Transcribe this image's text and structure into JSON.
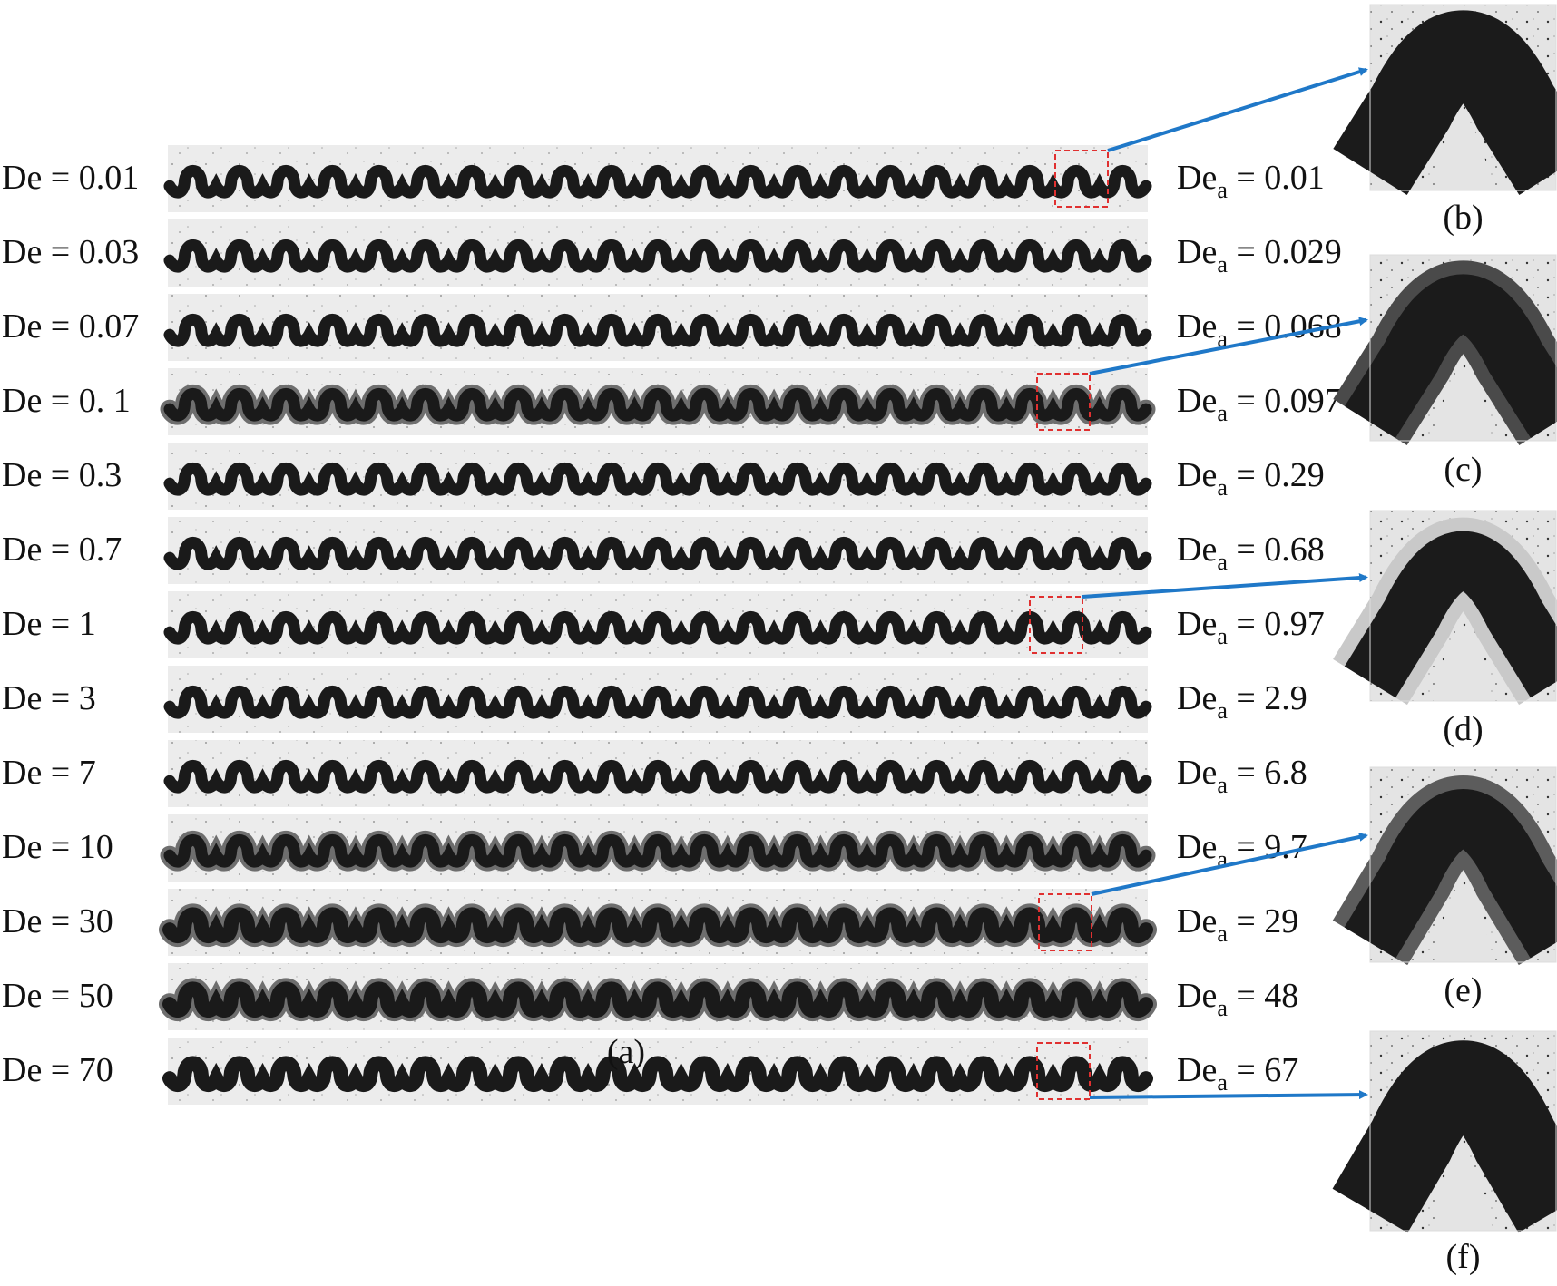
{
  "figure": {
    "rows": [
      {
        "de_label": "De = 0.01",
        "dea_value": "0.01"
      },
      {
        "de_label": "De = 0.03",
        "dea_value": "0.029"
      },
      {
        "de_label": "De = 0.07",
        "dea_value": "0.068"
      },
      {
        "de_label": "De = 0. 1",
        "dea_value": "0.097"
      },
      {
        "de_label": "De = 0.3",
        "dea_value": "0.29"
      },
      {
        "de_label": "De = 0.7",
        "dea_value": "0.68"
      },
      {
        "de_label": "De = 1",
        "dea_value": "0.97"
      },
      {
        "de_label": "De = 3",
        "dea_value": "2.9"
      },
      {
        "de_label": "De = 7",
        "dea_value": "6.8"
      },
      {
        "de_label": "De = 10",
        "dea_value": "9.7"
      },
      {
        "de_label": "De = 30",
        "dea_value": "29"
      },
      {
        "de_label": "De = 50",
        "dea_value": "48"
      },
      {
        "de_label": "De = 70",
        "dea_value": "67"
      }
    ],
    "dea_prefix": "De",
    "dea_subscript": "a",
    "dea_equals": " = ",
    "main_caption": "(a)",
    "insets": [
      {
        "caption": "(b)",
        "source_row": 0,
        "style": "uniform-dark"
      },
      {
        "caption": "(c)",
        "source_row": 3,
        "style": "gradient-outer"
      },
      {
        "caption": "(d)",
        "source_row": 6,
        "style": "light-outer-ring"
      },
      {
        "caption": "(e)",
        "source_row": 10,
        "style": "gray-outer-band"
      },
      {
        "caption": "(f)",
        "source_row": 12,
        "style": "uniform-dark"
      }
    ]
  },
  "colors": {
    "arrow": "#1f78c8",
    "highlight_box": "#e03030",
    "channel_fluid": "#1a1a1a",
    "background_strip": "#ececec"
  }
}
